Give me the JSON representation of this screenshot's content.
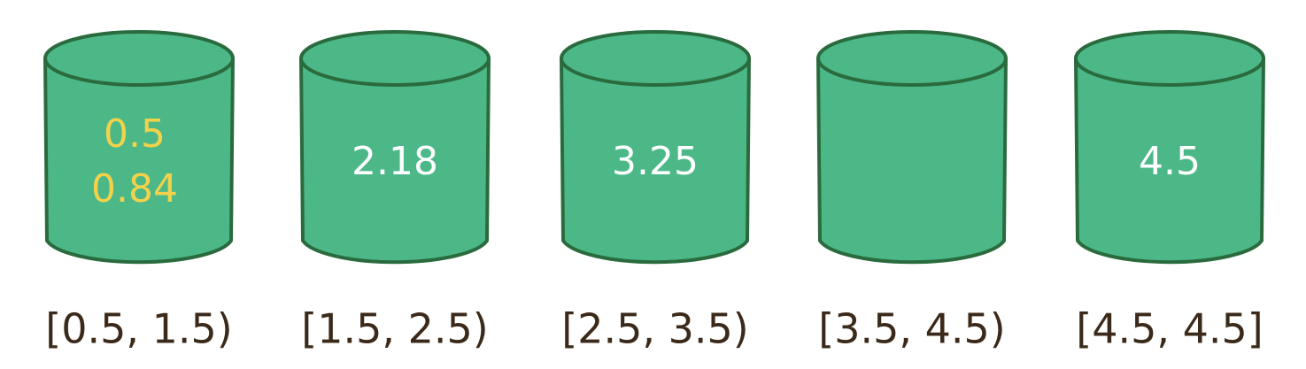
{
  "colors": {
    "bucket_fill": "#4cb887",
    "bucket_outline": "#2a6b3e",
    "highlight_value": "#f2d24b",
    "normal_value": "#ffffff",
    "range_label": "#3b2a1a"
  },
  "buckets": [
    {
      "range": "[0.5, 1.5)",
      "values": [
        "0.5",
        "0.84"
      ],
      "highlight": true
    },
    {
      "range": "[1.5, 2.5)",
      "values": [
        "2.18"
      ],
      "highlight": false
    },
    {
      "range": "[2.5, 3.5)",
      "values": [
        "3.25"
      ],
      "highlight": false
    },
    {
      "range": "[3.5, 4.5)",
      "values": [],
      "highlight": false
    },
    {
      "range": "[4.5, 4.5]",
      "values": [
        "4.5"
      ],
      "highlight": false
    }
  ]
}
